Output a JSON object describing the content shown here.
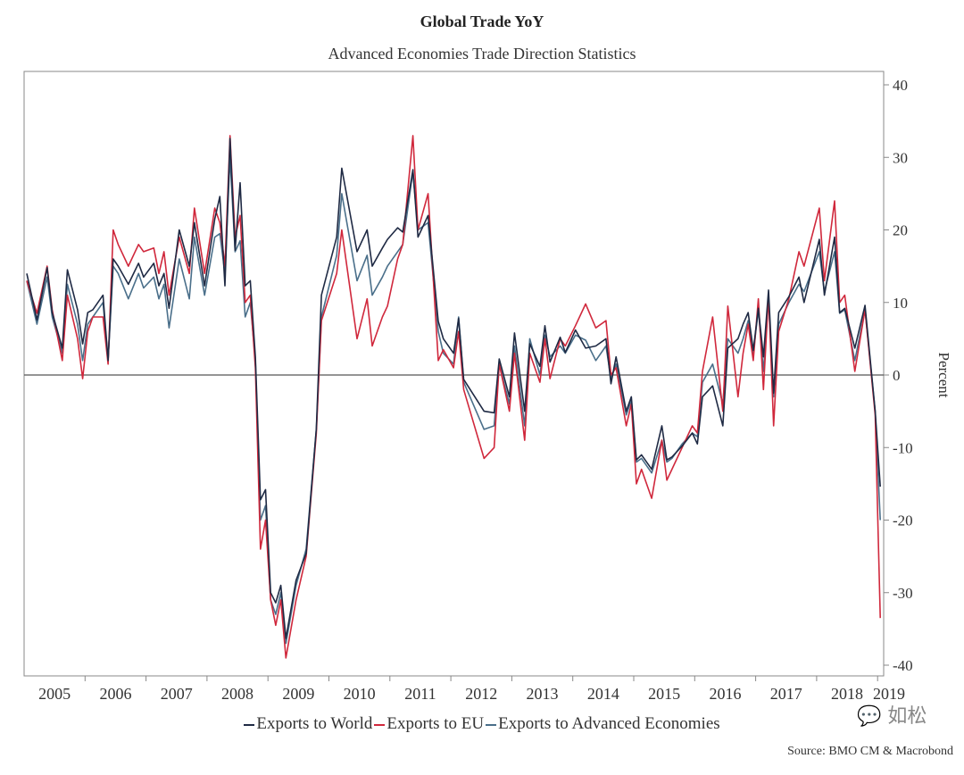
{
  "chart_data": {
    "type": "line",
    "title": "Global Trade YoY",
    "subtitle": "Advanced Economies Trade Direction Statistics",
    "ylabel": "Percent",
    "ylim": [
      -40,
      40
    ],
    "yticks": [
      40,
      30,
      20,
      10,
      0,
      -10,
      -20,
      -30,
      -40
    ],
    "xlabels": [
      "2005",
      "2006",
      "2007",
      "2008",
      "2009",
      "2010",
      "2011",
      "2012",
      "2013",
      "2014",
      "2015",
      "2016",
      "2017",
      "2018",
      "2019"
    ],
    "xlim": [
      "2005-01",
      "2019-01"
    ],
    "grid": false,
    "zero_line": true,
    "legend_position": "bottom",
    "source": "Source: BMO CM & Macrobond",
    "x": [
      "2005-01",
      "2005-03",
      "2005-05",
      "2005-06",
      "2005-08",
      "2005-09",
      "2005-11",
      "2005-12",
      "2006-01",
      "2006-02",
      "2006-04",
      "2006-05",
      "2006-06",
      "2006-07",
      "2006-09",
      "2006-11",
      "2006-12",
      "2007-02",
      "2007-03",
      "2007-04",
      "2007-05",
      "2007-07",
      "2007-09",
      "2007-10",
      "2007-12",
      "2008-02",
      "2008-03",
      "2008-04",
      "2008-05",
      "2008-06",
      "2008-07",
      "2008-08",
      "2008-09",
      "2008-10",
      "2008-11",
      "2008-12",
      "2009-01",
      "2009-02",
      "2009-03",
      "2009-04",
      "2009-06",
      "2009-08",
      "2009-10",
      "2009-11",
      "2010-02",
      "2010-03",
      "2010-06",
      "2010-08",
      "2010-09",
      "2010-11",
      "2010-12",
      "2011-02",
      "2011-03",
      "2011-05",
      "2011-06",
      "2011-08",
      "2011-10",
      "2011-11",
      "2012-01",
      "2012-02",
      "2012-03",
      "2012-07",
      "2012-09",
      "2012-10",
      "2012-12",
      "2013-01",
      "2013-03",
      "2013-04",
      "2013-06",
      "2013-07",
      "2013-08",
      "2013-10",
      "2013-11",
      "2014-01",
      "2014-03",
      "2014-05",
      "2014-07",
      "2014-08",
      "2014-09",
      "2014-11",
      "2014-12",
      "2015-01",
      "2015-02",
      "2015-04",
      "2015-06",
      "2015-07",
      "2015-08",
      "2015-10",
      "2015-12",
      "2016-01",
      "2016-02",
      "2016-04",
      "2016-06",
      "2016-07",
      "2016-09",
      "2016-10",
      "2016-11",
      "2016-12",
      "2017-01",
      "2017-02",
      "2017-03",
      "2017-04",
      "2017-05",
      "2017-07",
      "2017-09",
      "2017-10",
      "2018-01",
      "2018-02",
      "2018-04",
      "2018-05",
      "2018-06",
      "2018-08",
      "2018-10",
      "2018-12",
      "2019-01"
    ],
    "series": [
      {
        "name": "Exports to World",
        "color": "#1f2a44",
        "values": [
          14,
          7.6,
          14.8,
          8.6,
          3.7,
          14.5,
          9,
          4.3,
          8.6,
          9,
          11,
          2,
          16,
          15,
          12.5,
          15.4,
          13.5,
          15.4,
          12.3,
          14,
          9.2,
          20,
          15,
          21,
          12.3,
          21.5,
          24.6,
          12.3,
          32.6,
          17.2,
          26.5,
          12.3,
          13,
          2.5,
          -17.2,
          -15.8,
          -30,
          -31.4,
          -29,
          -36.3,
          -28.3,
          -24.6,
          -7.4,
          11,
          19,
          28.5,
          17,
          20,
          15,
          17.5,
          18.7,
          20.3,
          19.7,
          28.3,
          19,
          22,
          7.4,
          5,
          3,
          7.8,
          -0.6,
          -5,
          -5.2,
          2.2,
          -3,
          5.8,
          -5,
          4.3,
          1.2,
          6.8,
          1.8,
          5.2,
          3.1,
          6.2,
          3.7,
          4,
          5,
          -1.2,
          2.5,
          -5,
          -3,
          -11.7,
          -11,
          -13,
          -7,
          -11.7,
          -11.3,
          -9.8,
          -8,
          -9.5,
          -3,
          -1.5,
          -7,
          3.7,
          5,
          7,
          8.6,
          3.4,
          9.2,
          2.5,
          11.7,
          -2.5,
          8.6,
          10.8,
          13.5,
          10,
          18.7,
          11,
          19,
          8.6,
          9.2,
          3.7,
          9.6,
          -5,
          -15.4
        ]
      },
      {
        "name": "Exports to EU",
        "color": "#d0283c",
        "values": [
          13,
          8.5,
          15,
          9,
          2,
          11,
          5,
          -0.5,
          6,
          8,
          8,
          1.5,
          20,
          18,
          15,
          18,
          17,
          17.5,
          14,
          17,
          11,
          19,
          14,
          23,
          14,
          23,
          21,
          15,
          33,
          19,
          22,
          10,
          11,
          1,
          -24,
          -20,
          -31,
          -34.5,
          -31,
          -39,
          -31,
          -25,
          -8,
          7.5,
          14,
          20,
          5,
          10.5,
          4,
          8,
          9.5,
          16,
          18,
          33,
          20,
          25,
          2,
          3.5,
          1,
          6,
          -2,
          -11.5,
          -10,
          1.5,
          -5,
          3,
          -9,
          3,
          -1,
          5,
          -0.5,
          5,
          4,
          6.8,
          9.8,
          6.5,
          7.5,
          0,
          1,
          -7,
          -4,
          -15,
          -13,
          -17,
          -9,
          -14.5,
          -13,
          -10,
          -7,
          -8,
          0.5,
          8,
          -5,
          9.5,
          -3,
          3,
          7,
          2,
          10.5,
          -2,
          11,
          -7,
          6,
          10.5,
          17,
          15,
          23,
          13,
          24,
          10,
          11,
          0.5,
          9,
          -5.5,
          -33.5
        ]
      },
      {
        "name": "Exports to Advanced Economies",
        "color": "#4a6f8a",
        "values": [
          13,
          7,
          13.5,
          8,
          3,
          12.5,
          7,
          2,
          7,
          8,
          10,
          2,
          15,
          14,
          10.5,
          14,
          12,
          13.5,
          10.5,
          12.5,
          6.5,
          16,
          10.5,
          19,
          11,
          19,
          19.5,
          14,
          30,
          17,
          18.5,
          8,
          10,
          2,
          -20,
          -18,
          -31,
          -33,
          -30,
          -37,
          -29,
          -24,
          -7.5,
          8,
          16.5,
          25,
          13,
          16.5,
          11,
          13.5,
          15,
          17,
          18,
          28,
          20,
          21,
          6,
          3,
          1.5,
          8,
          -1,
          -7.5,
          -7,
          1.5,
          -4,
          4,
          -7,
          5,
          0,
          5.5,
          2.5,
          4,
          3,
          5.5,
          4.8,
          2,
          4,
          -0.5,
          1.5,
          -5.5,
          -3.5,
          -12,
          -11.5,
          -13.5,
          -9,
          -12,
          -11.5,
          -9.5,
          -8,
          -8.5,
          -1,
          1.5,
          -4,
          5,
          3,
          5,
          7.5,
          3,
          9,
          0.5,
          10.5,
          -3,
          7,
          10,
          12.5,
          11.5,
          17,
          11.5,
          17,
          8.5,
          9,
          2,
          9,
          -5,
          -20
        ]
      }
    ]
  },
  "watermark": "如松"
}
